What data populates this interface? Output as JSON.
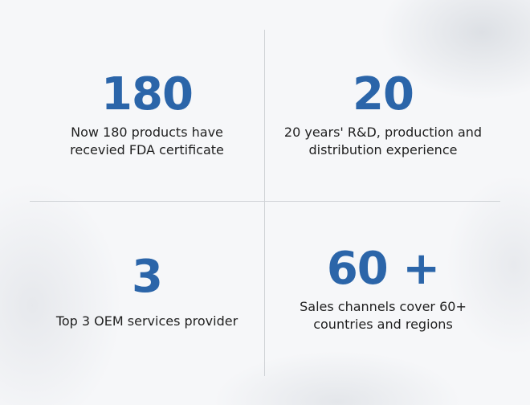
{
  "stats": [
    {
      "number": "180",
      "lines": [
        "Now 180 products have",
        "recevied FDA certificate"
      ]
    },
    {
      "number": "20",
      "lines": [
        "20 years' R&D, production and",
        "distribution experience"
      ]
    },
    {
      "number": "3",
      "lines": [
        "Top 3 OEM services provider"
      ]
    },
    {
      "number": "60 +",
      "lines": [
        "Sales channels cover 60+",
        "countries and regions"
      ]
    }
  ]
}
